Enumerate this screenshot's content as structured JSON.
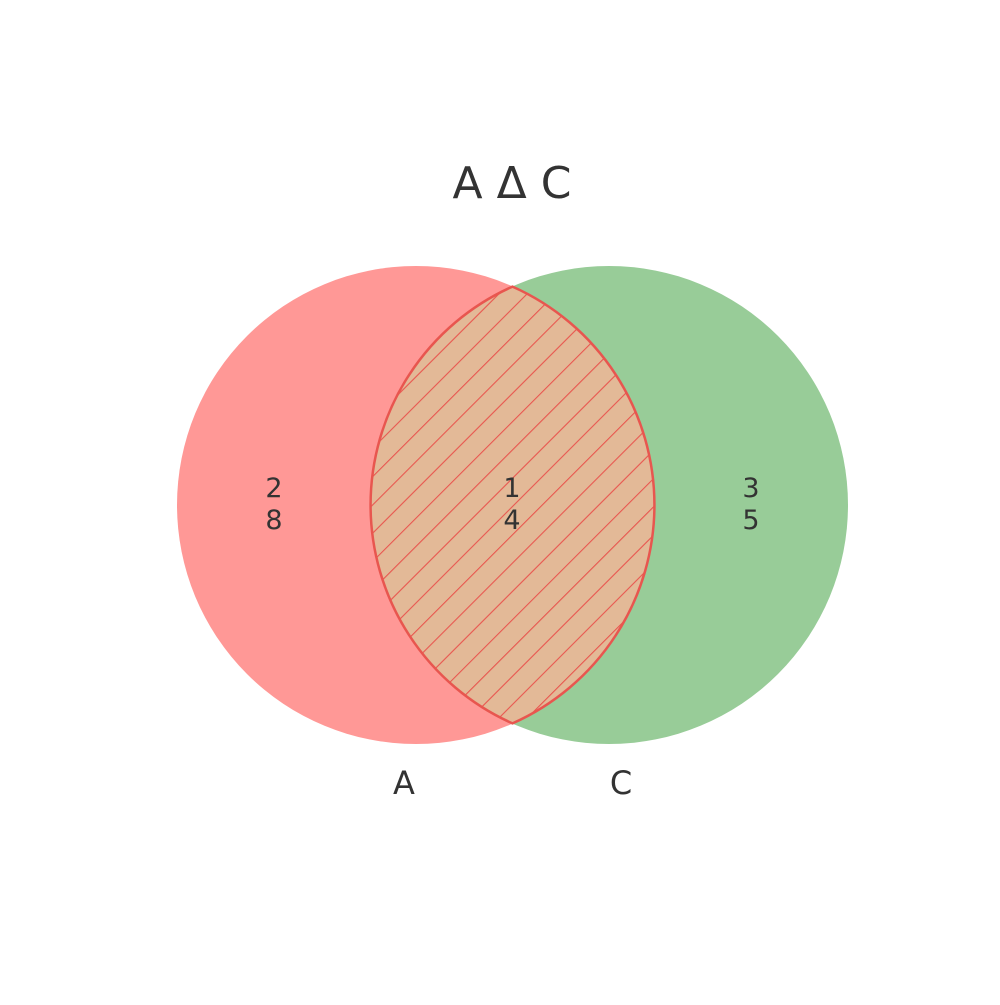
{
  "title": "A Δ C",
  "sets": [
    {
      "name": "A",
      "color": "#ff9896"
    },
    {
      "name": "C",
      "color": "#98cc98"
    }
  ],
  "overlap_color": "#e3b997",
  "hatch_color": "#e8564f",
  "regions": {
    "a_only": {
      "line1": "2",
      "line2": "8"
    },
    "both": {
      "line1": "1",
      "line2": "4"
    },
    "c_only": {
      "line1": "3",
      "line2": "5"
    }
  }
}
